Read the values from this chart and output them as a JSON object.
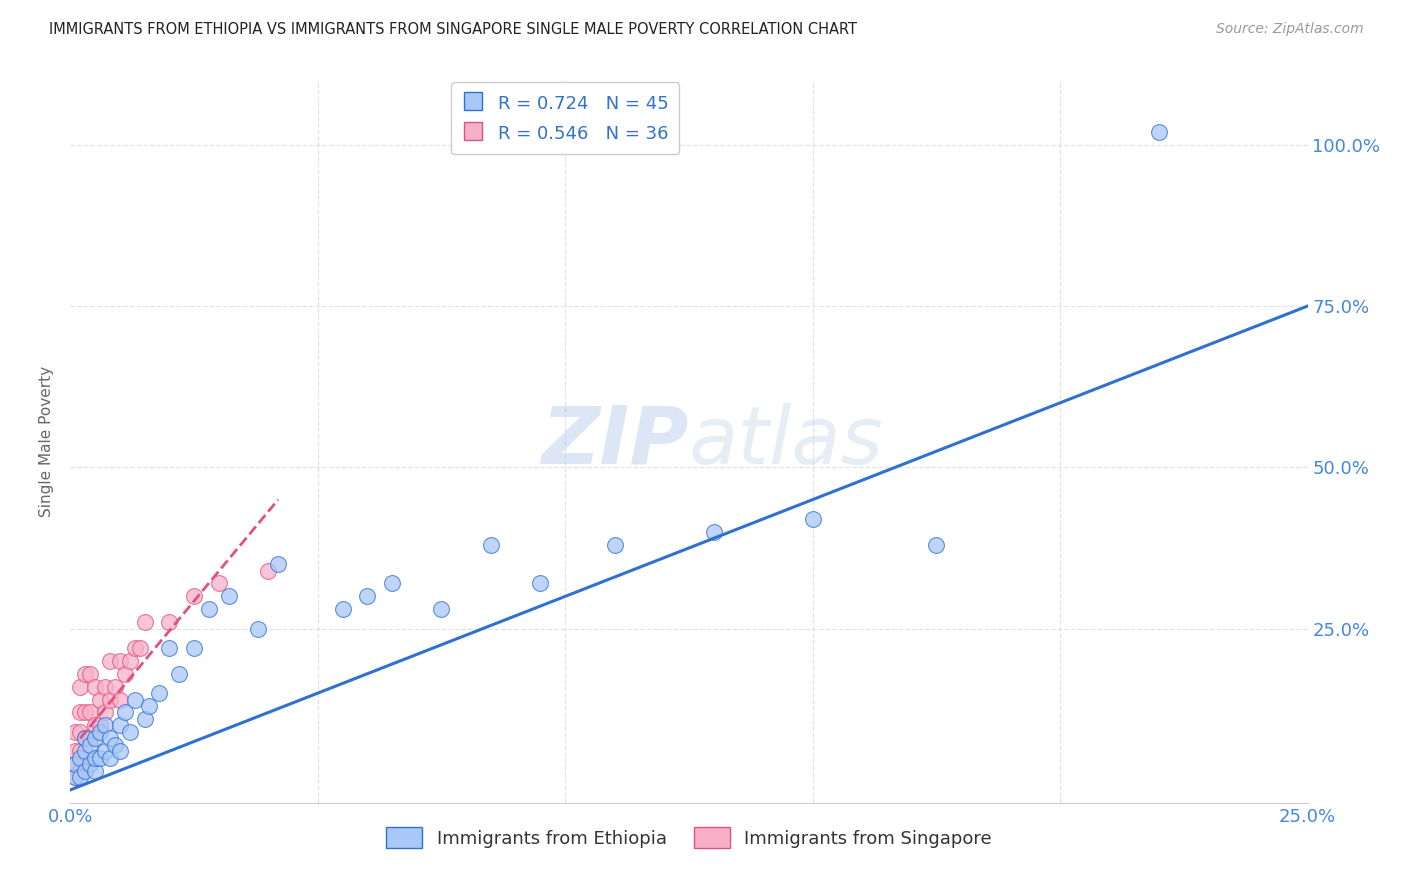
{
  "title": "IMMIGRANTS FROM ETHIOPIA VS IMMIGRANTS FROM SINGAPORE SINGLE MALE POVERTY CORRELATION CHART",
  "source": "Source: ZipAtlas.com",
  "ylabel_left": "Single Male Poverty",
  "legend_label1": "Immigrants from Ethiopia",
  "legend_label2": "Immigrants from Singapore",
  "R1": 0.724,
  "N1": 45,
  "R2": 0.546,
  "N2": 36,
  "xlim": [
    0.0,
    0.25
  ],
  "ylim": [
    -0.02,
    1.1
  ],
  "color_ethiopia": "#a8c8f8",
  "color_singapore": "#f8b0c8",
  "color_line_ethiopia": "#3070d0",
  "color_line_singapore": "#e05080",
  "watermark_zip": "ZIP",
  "watermark_atlas": "atlas",
  "watermark_color": "#cdd8ee",
  "background_color": "#ffffff",
  "grid_color": "#dde3ee",
  "blue_line_x0": 0.0,
  "blue_line_y0": 0.0,
  "blue_line_x1": 0.25,
  "blue_line_y1": 0.75,
  "pink_line_x0": 0.002,
  "pink_line_y0": 0.08,
  "pink_line_x1": 0.042,
  "pink_line_y1": 0.45,
  "ethiopia_x": [
    0.001,
    0.001,
    0.002,
    0.002,
    0.003,
    0.003,
    0.003,
    0.004,
    0.004,
    0.005,
    0.005,
    0.005,
    0.006,
    0.006,
    0.007,
    0.007,
    0.008,
    0.008,
    0.009,
    0.01,
    0.01,
    0.011,
    0.012,
    0.013,
    0.015,
    0.016,
    0.018,
    0.02,
    0.022,
    0.025,
    0.028,
    0.032,
    0.038,
    0.042,
    0.055,
    0.06,
    0.065,
    0.075,
    0.085,
    0.095,
    0.11,
    0.13,
    0.15,
    0.175,
    0.22
  ],
  "ethiopia_y": [
    0.02,
    0.04,
    0.02,
    0.05,
    0.03,
    0.06,
    0.08,
    0.04,
    0.07,
    0.03,
    0.05,
    0.08,
    0.05,
    0.09,
    0.06,
    0.1,
    0.05,
    0.08,
    0.07,
    0.06,
    0.1,
    0.12,
    0.09,
    0.14,
    0.11,
    0.13,
    0.15,
    0.22,
    0.18,
    0.22,
    0.28,
    0.3,
    0.25,
    0.35,
    0.28,
    0.3,
    0.32,
    0.28,
    0.38,
    0.32,
    0.38,
    0.4,
    0.42,
    0.38,
    1.02
  ],
  "singapore_x": [
    0.001,
    0.001,
    0.001,
    0.001,
    0.002,
    0.002,
    0.002,
    0.002,
    0.002,
    0.003,
    0.003,
    0.003,
    0.003,
    0.004,
    0.004,
    0.004,
    0.005,
    0.005,
    0.006,
    0.006,
    0.007,
    0.007,
    0.008,
    0.008,
    0.009,
    0.01,
    0.01,
    0.011,
    0.012,
    0.013,
    0.014,
    0.015,
    0.02,
    0.025,
    0.03,
    0.04
  ],
  "singapore_y": [
    0.02,
    0.04,
    0.06,
    0.09,
    0.03,
    0.06,
    0.09,
    0.12,
    0.16,
    0.05,
    0.08,
    0.12,
    0.18,
    0.08,
    0.12,
    0.18,
    0.1,
    0.16,
    0.1,
    0.14,
    0.12,
    0.16,
    0.14,
    0.2,
    0.16,
    0.14,
    0.2,
    0.18,
    0.2,
    0.22,
    0.22,
    0.26,
    0.26,
    0.3,
    0.32,
    0.34
  ]
}
